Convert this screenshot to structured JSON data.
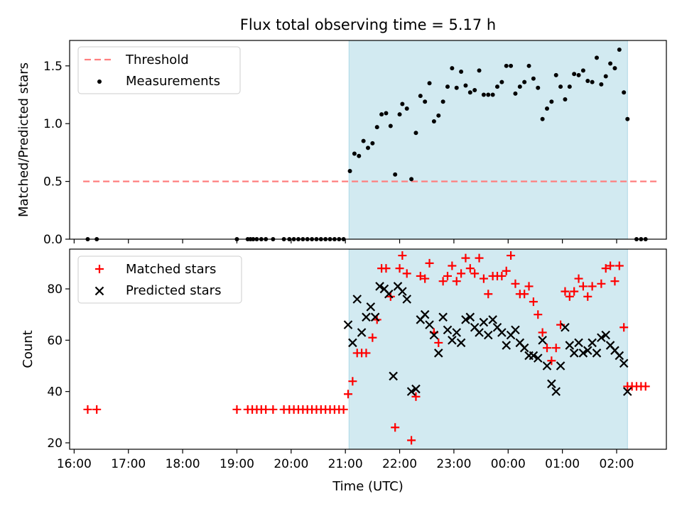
{
  "title": "Flux total observing time = 5.17 h",
  "chart_data": [
    {
      "type": "scatter",
      "ylabel": "Matched/Predicted stars",
      "ylim": [
        0,
        1.72
      ],
      "yticks": [
        "0.0",
        "0.5",
        "1.0",
        "1.5"
      ],
      "ytick_values": [
        0,
        0.5,
        1.0,
        1.5
      ],
      "legend_position": "top-left",
      "threshold": {
        "name": "Threshold",
        "value": 0.5,
        "color": "#ff7f7f",
        "x": [
          "16:10",
          "02:45"
        ]
      },
      "measurements_name": "Measurements",
      "measurements_color": "#000000",
      "points": [
        [
          "16:15",
          0.0
        ],
        [
          "16:25",
          0.0
        ],
        [
          "19:00",
          0.0
        ],
        [
          "19:12",
          0.0
        ],
        [
          "19:15",
          0.0
        ],
        [
          "19:18",
          0.0
        ],
        [
          "19:22",
          0.0
        ],
        [
          "19:27",
          0.0
        ],
        [
          "19:32",
          0.0
        ],
        [
          "19:40",
          0.0
        ],
        [
          "19:52",
          0.0
        ],
        [
          "19:58",
          0.0
        ],
        [
          "20:03",
          0.0
        ],
        [
          "20:08",
          0.0
        ],
        [
          "20:13",
          0.0
        ],
        [
          "20:18",
          0.0
        ],
        [
          "20:23",
          0.0
        ],
        [
          "20:28",
          0.0
        ],
        [
          "20:33",
          0.0
        ],
        [
          "20:38",
          0.0
        ],
        [
          "20:43",
          0.0
        ],
        [
          "20:48",
          0.0
        ],
        [
          "20:53",
          0.0
        ],
        [
          "20:58",
          0.0
        ],
        [
          "21:05",
          0.59
        ],
        [
          "21:10",
          0.74
        ],
        [
          "21:15",
          0.72
        ],
        [
          "21:20",
          0.85
        ],
        [
          "21:25",
          0.79
        ],
        [
          "21:30",
          0.83
        ],
        [
          "21:35",
          0.97
        ],
        [
          "21:40",
          1.08
        ],
        [
          "21:45",
          1.09
        ],
        [
          "21:50",
          0.98
        ],
        [
          "21:55",
          0.56
        ],
        [
          "22:00",
          1.08
        ],
        [
          "22:03",
          1.17
        ],
        [
          "22:08",
          1.13
        ],
        [
          "22:13",
          0.52
        ],
        [
          "22:18",
          0.92
        ],
        [
          "22:23",
          1.24
        ],
        [
          "22:28",
          1.19
        ],
        [
          "22:33",
          1.35
        ],
        [
          "22:38",
          1.02
        ],
        [
          "22:43",
          1.07
        ],
        [
          "22:48",
          1.19
        ],
        [
          "22:53",
          1.32
        ],
        [
          "22:58",
          1.48
        ],
        [
          "23:03",
          1.31
        ],
        [
          "23:08",
          1.45
        ],
        [
          "23:13",
          1.33
        ],
        [
          "23:18",
          1.27
        ],
        [
          "23:23",
          1.29
        ],
        [
          "23:28",
          1.46
        ],
        [
          "23:33",
          1.25
        ],
        [
          "23:38",
          1.25
        ],
        [
          "23:43",
          1.25
        ],
        [
          "23:48",
          1.32
        ],
        [
          "23:53",
          1.36
        ],
        [
          "23:58",
          1.5
        ],
        [
          "00:03",
          1.5
        ],
        [
          "00:08",
          1.26
        ],
        [
          "00:13",
          1.32
        ],
        [
          "00:18",
          1.36
        ],
        [
          "00:23",
          1.5
        ],
        [
          "00:28",
          1.39
        ],
        [
          "00:33",
          1.31
        ],
        [
          "00:38",
          1.04
        ],
        [
          "00:43",
          1.13
        ],
        [
          "00:48",
          1.19
        ],
        [
          "00:53",
          1.42
        ],
        [
          "00:58",
          1.32
        ],
        [
          "01:03",
          1.21
        ],
        [
          "01:08",
          1.32
        ],
        [
          "01:13",
          1.43
        ],
        [
          "01:18",
          1.42
        ],
        [
          "01:23",
          1.46
        ],
        [
          "01:28",
          1.37
        ],
        [
          "01:33",
          1.36
        ],
        [
          "01:38",
          1.57
        ],
        [
          "01:43",
          1.34
        ],
        [
          "01:48",
          1.41
        ],
        [
          "01:53",
          1.52
        ],
        [
          "01:58",
          1.48
        ],
        [
          "02:03",
          1.64
        ],
        [
          "02:08",
          1.27
        ],
        [
          "02:12",
          1.04
        ],
        [
          "02:22",
          0.0
        ],
        [
          "02:27",
          0.0
        ],
        [
          "02:32",
          0.0
        ]
      ]
    },
    {
      "type": "scatter",
      "xlabel": "Time (UTC)",
      "ylabel": "Count",
      "ylim": [
        17.5,
        95.5
      ],
      "yticks": [
        "20",
        "40",
        "60",
        "80"
      ],
      "ytick_values": [
        20,
        40,
        60,
        80
      ],
      "legend_position": "top-left",
      "series": [
        {
          "name": "Matched stars",
          "color": "#ff0000",
          "marker": "plus",
          "points": [
            [
              "16:15",
              33
            ],
            [
              "16:25",
              33
            ],
            [
              "19:00",
              33
            ],
            [
              "19:12",
              33
            ],
            [
              "19:17",
              33
            ],
            [
              "19:22",
              33
            ],
            [
              "19:27",
              33
            ],
            [
              "19:32",
              33
            ],
            [
              "19:40",
              33
            ],
            [
              "19:52",
              33
            ],
            [
              "19:58",
              33
            ],
            [
              "20:03",
              33
            ],
            [
              "20:08",
              33
            ],
            [
              "20:13",
              33
            ],
            [
              "20:18",
              33
            ],
            [
              "20:23",
              33
            ],
            [
              "20:28",
              33
            ],
            [
              "20:33",
              33
            ],
            [
              "20:38",
              33
            ],
            [
              "20:43",
              33
            ],
            [
              "20:48",
              33
            ],
            [
              "20:53",
              33
            ],
            [
              "20:58",
              33
            ],
            [
              "21:03",
              39
            ],
            [
              "21:08",
              44
            ],
            [
              "21:13",
              55
            ],
            [
              "21:18",
              55
            ],
            [
              "21:23",
              55
            ],
            [
              "21:30",
              61
            ],
            [
              "21:35",
              68
            ],
            [
              "21:40",
              88
            ],
            [
              "21:45",
              88
            ],
            [
              "21:50",
              77
            ],
            [
              "21:55",
              26
            ],
            [
              "22:00",
              88
            ],
            [
              "22:03",
              93
            ],
            [
              "22:08",
              86
            ],
            [
              "22:13",
              21
            ],
            [
              "22:18",
              38
            ],
            [
              "22:23",
              85
            ],
            [
              "22:28",
              84
            ],
            [
              "22:33",
              90
            ],
            [
              "22:38",
              63
            ],
            [
              "22:43",
              59
            ],
            [
              "22:48",
              83
            ],
            [
              "22:53",
              85
            ],
            [
              "22:58",
              89
            ],
            [
              "23:03",
              83
            ],
            [
              "23:08",
              86
            ],
            [
              "23:13",
              92
            ],
            [
              "23:18",
              88
            ],
            [
              "23:23",
              86
            ],
            [
              "23:28",
              92
            ],
            [
              "23:33",
              84
            ],
            [
              "23:38",
              78
            ],
            [
              "23:43",
              85
            ],
            [
              "23:48",
              85
            ],
            [
              "23:53",
              85
            ],
            [
              "23:58",
              87
            ],
            [
              "00:03",
              93
            ],
            [
              "00:08",
              82
            ],
            [
              "00:13",
              78
            ],
            [
              "00:18",
              78
            ],
            [
              "00:23",
              81
            ],
            [
              "00:28",
              75
            ],
            [
              "00:33",
              70
            ],
            [
              "00:38",
              63
            ],
            [
              "00:43",
              57
            ],
            [
              "00:48",
              52
            ],
            [
              "00:53",
              57
            ],
            [
              "00:58",
              66
            ],
            [
              "01:03",
              79
            ],
            [
              "01:08",
              77
            ],
            [
              "01:13",
              79
            ],
            [
              "01:18",
              84
            ],
            [
              "01:23",
              81
            ],
            [
              "01:28",
              77
            ],
            [
              "01:33",
              81
            ],
            [
              "01:43",
              82
            ],
            [
              "01:48",
              88
            ],
            [
              "01:53",
              89
            ],
            [
              "01:58",
              83
            ],
            [
              "02:03",
              89
            ],
            [
              "02:08",
              65
            ],
            [
              "02:12",
              42
            ],
            [
              "02:17",
              42
            ],
            [
              "02:22",
              42
            ],
            [
              "02:27",
              42
            ],
            [
              "02:32",
              42
            ]
          ]
        },
        {
          "name": "Predicted stars",
          "color": "#000000",
          "marker": "x",
          "points": [
            [
              "21:03",
              66
            ],
            [
              "21:08",
              59
            ],
            [
              "21:13",
              76
            ],
            [
              "21:18",
              63
            ],
            [
              "21:23",
              69
            ],
            [
              "21:28",
              73
            ],
            [
              "21:33",
              69
            ],
            [
              "21:38",
              81
            ],
            [
              "21:43",
              80
            ],
            [
              "21:48",
              78
            ],
            [
              "21:53",
              46
            ],
            [
              "21:58",
              81
            ],
            [
              "22:03",
              79
            ],
            [
              "22:08",
              76
            ],
            [
              "22:13",
              40
            ],
            [
              "22:18",
              41
            ],
            [
              "22:23",
              68
            ],
            [
              "22:28",
              70
            ],
            [
              "22:33",
              66
            ],
            [
              "22:38",
              62
            ],
            [
              "22:43",
              55
            ],
            [
              "22:48",
              69
            ],
            [
              "22:53",
              64
            ],
            [
              "22:58",
              60
            ],
            [
              "23:03",
              63
            ],
            [
              "23:08",
              59
            ],
            [
              "23:13",
              68
            ],
            [
              "23:18",
              69
            ],
            [
              "23:23",
              65
            ],
            [
              "23:28",
              63
            ],
            [
              "23:33",
              67
            ],
            [
              "23:38",
              62
            ],
            [
              "23:43",
              68
            ],
            [
              "23:48",
              65
            ],
            [
              "23:53",
              63
            ],
            [
              "23:58",
              58
            ],
            [
              "00:03",
              62
            ],
            [
              "00:08",
              64
            ],
            [
              "00:13",
              59
            ],
            [
              "00:18",
              57
            ],
            [
              "00:23",
              54
            ],
            [
              "00:28",
              54
            ],
            [
              "00:33",
              53
            ],
            [
              "00:38",
              60
            ],
            [
              "00:43",
              50
            ],
            [
              "00:48",
              43
            ],
            [
              "00:53",
              40
            ],
            [
              "00:58",
              50
            ],
            [
              "01:03",
              65
            ],
            [
              "01:08",
              58
            ],
            [
              "01:13",
              55
            ],
            [
              "01:18",
              59
            ],
            [
              "01:23",
              55
            ],
            [
              "01:28",
              56
            ],
            [
              "01:33",
              59
            ],
            [
              "01:38",
              55
            ],
            [
              "01:43",
              61
            ],
            [
              "01:48",
              62
            ],
            [
              "01:53",
              58
            ],
            [
              "01:58",
              56
            ],
            [
              "02:03",
              54
            ],
            [
              "02:08",
              51
            ],
            [
              "02:12",
              40
            ]
          ]
        }
      ]
    }
  ],
  "x_axis": {
    "range": [
      "15:55",
      "02:55"
    ],
    "ticks": [
      "16:00",
      "17:00",
      "18:00",
      "19:00",
      "20:00",
      "21:00",
      "22:00",
      "23:00",
      "00:00",
      "01:00",
      "02:00"
    ]
  },
  "observing_window": {
    "start": "21:04",
    "end": "02:12",
    "color": "#add8e6"
  }
}
